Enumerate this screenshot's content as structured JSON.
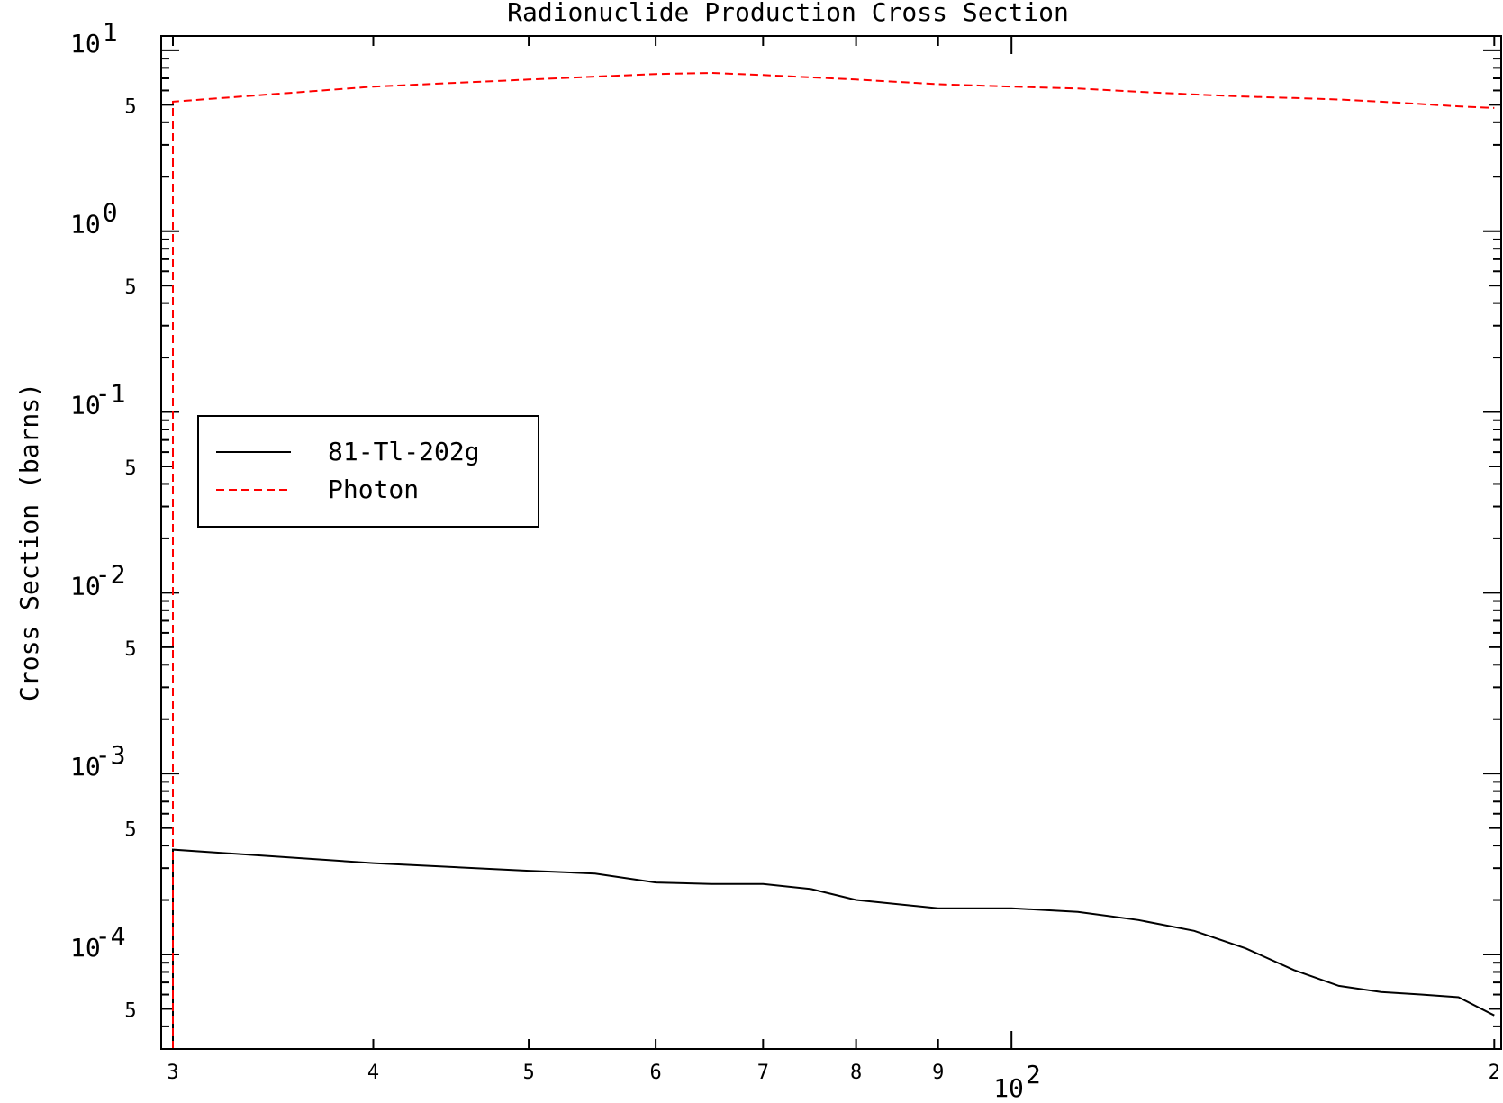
{
  "chart_data": {
    "type": "line",
    "title": "Radionuclide Production Cross Section",
    "xlabel": "",
    "ylabel": "Cross Section (barns)",
    "x_scale": "log",
    "y_scale": "log",
    "xlim": [
      29.5,
      202
    ],
    "ylim": [
      3e-05,
      12
    ],
    "grid": false,
    "legend_position": "upper-left",
    "y_major_ticks": [
      {
        "value": 10,
        "base": "10",
        "exp": "1"
      },
      {
        "value": 1,
        "base": "10",
        "exp": "0"
      },
      {
        "value": 0.1,
        "base": "10",
        "exp": "-1"
      },
      {
        "value": 0.01,
        "base": "10",
        "exp": "-2"
      },
      {
        "value": 0.001,
        "base": "10",
        "exp": "-3"
      },
      {
        "value": 0.0001,
        "base": "10",
        "exp": "-4"
      }
    ],
    "y_minor_labels": [
      {
        "value": 5,
        "label": "5"
      },
      {
        "value": 0.5,
        "label": "5"
      },
      {
        "value": 0.05,
        "label": "5"
      },
      {
        "value": 0.005,
        "label": "5"
      },
      {
        "value": 0.0005,
        "label": "5"
      },
      {
        "value": 5e-05,
        "label": "5"
      }
    ],
    "x_tick_labels": [
      {
        "value": 30,
        "label": "3"
      },
      {
        "value": 40,
        "label": "4"
      },
      {
        "value": 50,
        "label": "5"
      },
      {
        "value": 60,
        "label": "6"
      },
      {
        "value": 70,
        "label": "7"
      },
      {
        "value": 80,
        "label": "8"
      },
      {
        "value": 90,
        "label": "9"
      },
      {
        "value": 200,
        "label": "2"
      }
    ],
    "x_decade_label": {
      "value": 100,
      "base": "10",
      "exp": "2"
    },
    "series": [
      {
        "name": "81-Tl-202g",
        "color": "#000000",
        "dash": "solid",
        "x": [
          30,
          30,
          40,
          50,
          55,
          60,
          65,
          70,
          75,
          80,
          90,
          100,
          110,
          120,
          130,
          140,
          150,
          160,
          170,
          180,
          190,
          200
        ],
        "y": [
          3e-05,
          0.00038,
          0.00032,
          0.00029,
          0.00028,
          0.00025,
          0.000245,
          0.000245,
          0.00023,
          0.0002,
          0.00018,
          0.00018,
          0.000172,
          0.000155,
          0.000135,
          0.000108,
          8.2e-05,
          6.7e-05,
          6.2e-05,
          6e-05,
          5.8e-05,
          4.6e-05
        ]
      },
      {
        "name": "Photon",
        "color": "#ff0000",
        "dash": "dashed",
        "x": [
          30,
          30,
          40,
          50,
          60,
          65,
          70,
          80,
          90,
          100,
          110,
          120,
          130,
          140,
          150,
          160,
          170,
          180,
          190,
          200
        ],
        "y": [
          3e-05,
          5.2,
          6.3,
          6.9,
          7.4,
          7.5,
          7.3,
          6.9,
          6.5,
          6.3,
          6.15,
          5.9,
          5.7,
          5.55,
          5.45,
          5.35,
          5.2,
          5.05,
          4.9,
          4.8
        ]
      }
    ]
  }
}
